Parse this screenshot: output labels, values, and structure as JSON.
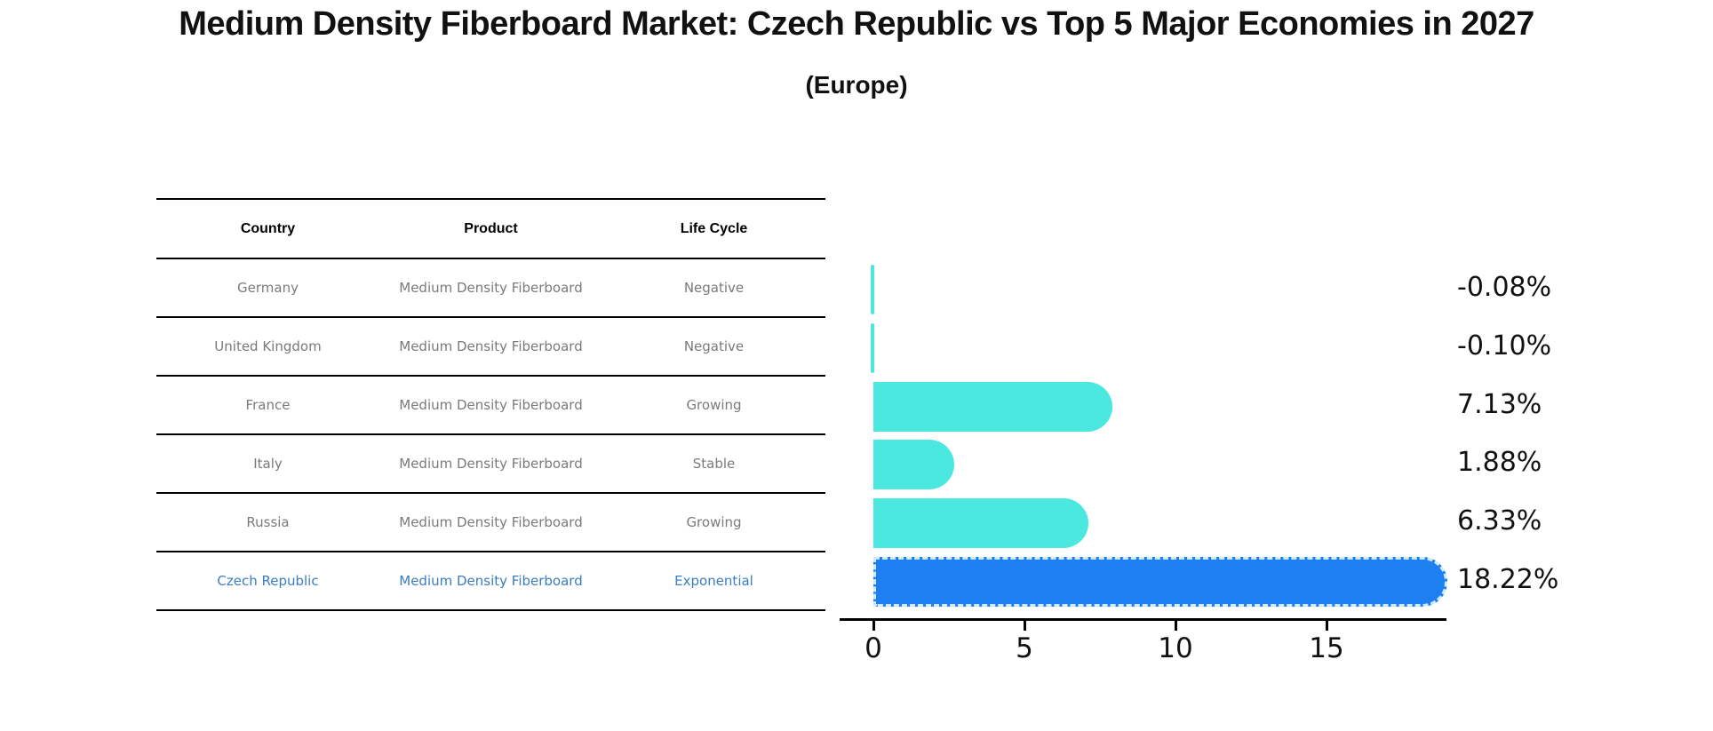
{
  "header": {
    "title": "Medium Density Fiberboard Market: Czech Republic vs Top 5 Major Economies in 2027",
    "subtitle": "(Europe)"
  },
  "table": {
    "headers": [
      "Country",
      "Product",
      "Life Cycle"
    ],
    "rows": [
      {
        "country": "Germany",
        "product": "Medium Density Fiberboard",
        "life_cycle": "Negative"
      },
      {
        "country": "United Kingdom",
        "product": "Medium Density Fiberboard",
        "life_cycle": "Negative"
      },
      {
        "country": "France",
        "product": "Medium Density Fiberboard",
        "life_cycle": "Growing"
      },
      {
        "country": "Italy",
        "product": "Medium Density Fiberboard",
        "life_cycle": "Stable"
      },
      {
        "country": "Russia",
        "product": "Medium Density Fiberboard",
        "life_cycle": "Growing"
      },
      {
        "country": "Czech Republic",
        "product": "Medium Density Fiberboard",
        "life_cycle": "Exponential"
      }
    ],
    "highlight_row_index": 5
  },
  "chart_data": {
    "type": "bar",
    "orientation": "horizontal",
    "title": "Medium Density Fiberboard Market: Czech Republic vs Top 5 Major Economies in 2027",
    "subtitle": "(Europe)",
    "categories": [
      "Germany",
      "United Kingdom",
      "France",
      "Italy",
      "Russia",
      "Czech Republic"
    ],
    "values": [
      -0.08,
      -0.1,
      7.13,
      1.88,
      6.33,
      18.22
    ],
    "value_labels": [
      "-0.08%",
      "-0.10%",
      "7.13%",
      "1.88%",
      "6.33%",
      "18.22%"
    ],
    "x_ticks": [
      0,
      5,
      10,
      15
    ],
    "xlim": [
      0,
      19.3
    ],
    "xlabel": "",
    "ylabel": "",
    "grid": "off",
    "legend": "none",
    "highlight_index": 5
  },
  "colors": {
    "bar_default": "#4BE8E0",
    "bar_highlight": "#1E80F0",
    "highlight_dash": "#CFEAFF",
    "highlight_text": "#3A7EBF",
    "table_text": "#7A7A7A",
    "axis": "#000000",
    "value_label": "#111111"
  }
}
